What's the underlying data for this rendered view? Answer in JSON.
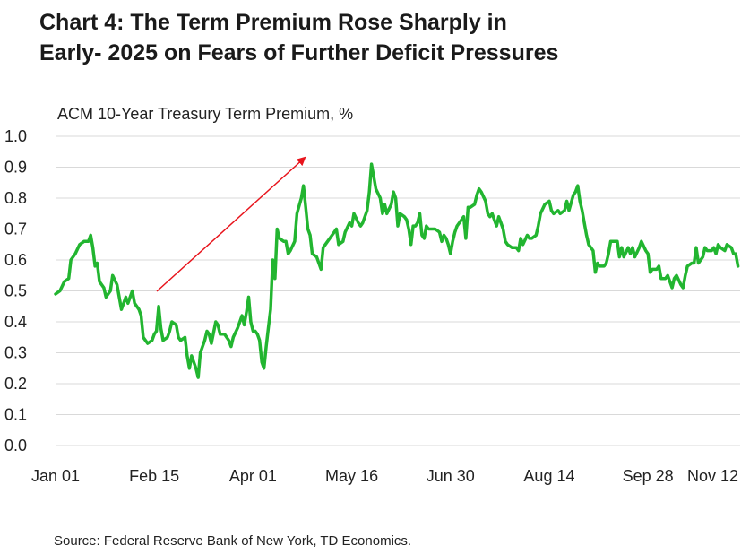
{
  "title": {
    "line1": "Chart 4: The Term Premium Rose Sharply in",
    "line2": "Early- 2025 on Fears of Further Deficit Pressures"
  },
  "source": "Source: Federal Reserve Bank of New York, TD Economics.",
  "colors": {
    "series": "#22b530",
    "arrow": "#e8141c",
    "grid": "#d9d9d9"
  },
  "chart_data": {
    "type": "line",
    "title": "",
    "ylabel": "ACM 10-Year Treasury Term Premium, %",
    "xlabel": "",
    "ylim": [
      0.0,
      1.0
    ],
    "y_ticks": [
      "1.0",
      "0.9",
      "0.8",
      "0.7",
      "0.6",
      "0.5",
      "0.4",
      "0.3",
      "0.2",
      "0.1",
      "0.0"
    ],
    "x_ticks": [
      "Jan 01",
      "Feb 15",
      "Apr 01",
      "May 16",
      "Jun 30",
      "Aug 14",
      "Sep 28",
      "Nov 12"
    ],
    "grid": "horizontal",
    "legend": "none",
    "annotation": "upward arrow from mid-Feb to early May",
    "series": [
      {
        "values": [
          [
            0,
            0.49
          ],
          [
            2,
            0.5
          ],
          [
            4,
            0.53
          ],
          [
            6,
            0.54
          ],
          [
            7,
            0.6
          ],
          [
            9,
            0.62
          ],
          [
            11,
            0.65
          ],
          [
            13,
            0.66
          ],
          [
            15,
            0.66
          ],
          [
            16,
            0.68
          ],
          [
            17,
            0.64
          ],
          [
            18,
            0.58
          ],
          [
            19,
            0.59
          ],
          [
            20,
            0.53
          ],
          [
            22,
            0.51
          ],
          [
            23,
            0.48
          ],
          [
            25,
            0.5
          ],
          [
            26,
            0.55
          ],
          [
            28,
            0.52
          ],
          [
            30,
            0.44
          ],
          [
            32,
            0.48
          ],
          [
            33,
            0.46
          ],
          [
            35,
            0.5
          ],
          [
            36,
            0.46
          ],
          [
            38,
            0.44
          ],
          [
            39,
            0.42
          ],
          [
            40,
            0.35
          ],
          [
            42,
            0.33
          ],
          [
            44,
            0.34
          ],
          [
            45,
            0.36
          ],
          [
            46,
            0.37
          ],
          [
            47,
            0.45
          ],
          [
            48,
            0.38
          ],
          [
            49,
            0.34
          ],
          [
            51,
            0.35
          ],
          [
            52,
            0.37
          ],
          [
            53,
            0.4
          ],
          [
            55,
            0.39
          ],
          [
            56,
            0.35
          ],
          [
            57,
            0.34
          ],
          [
            59,
            0.35
          ],
          [
            60,
            0.29
          ],
          [
            61,
            0.25
          ],
          [
            62,
            0.29
          ],
          [
            64,
            0.25
          ],
          [
            65,
            0.22
          ],
          [
            66,
            0.3
          ],
          [
            68,
            0.34
          ],
          [
            69,
            0.37
          ],
          [
            70,
            0.36
          ],
          [
            71,
            0.33
          ],
          [
            73,
            0.4
          ],
          [
            74,
            0.39
          ],
          [
            75,
            0.36
          ],
          [
            77,
            0.36
          ],
          [
            79,
            0.34
          ],
          [
            80,
            0.32
          ],
          [
            81,
            0.35
          ],
          [
            83,
            0.38
          ],
          [
            85,
            0.42
          ],
          [
            86,
            0.39
          ],
          [
            87,
            0.43
          ],
          [
            88,
            0.48
          ],
          [
            89,
            0.4
          ],
          [
            90,
            0.37
          ],
          [
            91,
            0.37
          ],
          [
            92,
            0.36
          ],
          [
            93,
            0.34
          ],
          [
            94,
            0.27
          ],
          [
            95,
            0.25
          ],
          [
            96,
            0.32
          ],
          [
            97,
            0.38
          ],
          [
            98,
            0.44
          ],
          [
            99,
            0.6
          ],
          [
            100,
            0.54
          ],
          [
            101,
            0.7
          ],
          [
            102,
            0.67
          ],
          [
            104,
            0.66
          ],
          [
            105,
            0.66
          ],
          [
            106,
            0.62
          ],
          [
            107,
            0.63
          ],
          [
            109,
            0.66
          ],
          [
            110,
            0.75
          ],
          [
            112,
            0.8
          ],
          [
            113,
            0.84
          ],
          [
            114,
            0.77
          ],
          [
            115,
            0.7
          ],
          [
            116,
            0.68
          ],
          [
            117,
            0.62
          ],
          [
            119,
            0.61
          ],
          [
            121,
            0.57
          ],
          [
            122,
            0.64
          ],
          [
            124,
            0.66
          ],
          [
            125,
            0.67
          ],
          [
            127,
            0.69
          ],
          [
            128,
            0.7
          ],
          [
            129,
            0.65
          ],
          [
            131,
            0.66
          ],
          [
            132,
            0.69
          ],
          [
            134,
            0.72
          ],
          [
            135,
            0.71
          ],
          [
            136,
            0.75
          ],
          [
            138,
            0.72
          ],
          [
            139,
            0.71
          ],
          [
            140,
            0.72
          ],
          [
            142,
            0.76
          ],
          [
            143,
            0.82
          ],
          [
            144,
            0.91
          ],
          [
            145,
            0.87
          ],
          [
            146,
            0.83
          ],
          [
            148,
            0.8
          ],
          [
            149,
            0.75
          ],
          [
            150,
            0.78
          ],
          [
            151,
            0.75
          ],
          [
            153,
            0.78
          ],
          [
            154,
            0.82
          ],
          [
            155,
            0.8
          ],
          [
            156,
            0.71
          ],
          [
            157,
            0.75
          ],
          [
            159,
            0.74
          ],
          [
            160,
            0.73
          ],
          [
            161,
            0.7
          ],
          [
            162,
            0.65
          ],
          [
            163,
            0.71
          ],
          [
            164,
            0.71
          ],
          [
            165,
            0.72
          ],
          [
            166,
            0.75
          ],
          [
            167,
            0.68
          ],
          [
            168,
            0.67
          ],
          [
            169,
            0.71
          ],
          [
            170,
            0.7
          ],
          [
            171,
            0.7
          ],
          [
            173,
            0.7
          ],
          [
            175,
            0.69
          ],
          [
            176,
            0.66
          ],
          [
            177,
            0.68
          ],
          [
            178,
            0.67
          ],
          [
            179,
            0.65
          ],
          [
            180,
            0.62
          ],
          [
            181,
            0.66
          ],
          [
            182,
            0.69
          ],
          [
            183,
            0.71
          ],
          [
            184,
            0.72
          ],
          [
            185,
            0.73
          ],
          [
            186,
            0.74
          ],
          [
            187,
            0.67
          ],
          [
            188,
            0.77
          ],
          [
            189,
            0.77
          ],
          [
            191,
            0.78
          ],
          [
            192,
            0.81
          ],
          [
            193,
            0.83
          ],
          [
            194,
            0.82
          ],
          [
            196,
            0.79
          ],
          [
            197,
            0.75
          ],
          [
            198,
            0.74
          ],
          [
            199,
            0.75
          ],
          [
            200,
            0.73
          ],
          [
            201,
            0.71
          ],
          [
            202,
            0.74
          ],
          [
            203,
            0.72
          ],
          [
            204,
            0.7
          ],
          [
            205,
            0.66
          ],
          [
            206,
            0.65
          ],
          [
            208,
            0.64
          ],
          [
            210,
            0.64
          ],
          [
            211,
            0.63
          ],
          [
            212,
            0.67
          ],
          [
            213,
            0.65
          ],
          [
            215,
            0.68
          ],
          [
            216,
            0.67
          ],
          [
            217,
            0.67
          ],
          [
            219,
            0.68
          ],
          [
            220,
            0.71
          ],
          [
            221,
            0.75
          ],
          [
            223,
            0.78
          ],
          [
            225,
            0.79
          ],
          [
            226,
            0.76
          ],
          [
            227,
            0.75
          ],
          [
            229,
            0.76
          ],
          [
            230,
            0.75
          ],
          [
            232,
            0.76
          ],
          [
            233,
            0.79
          ],
          [
            234,
            0.76
          ],
          [
            236,
            0.81
          ],
          [
            237,
            0.82
          ],
          [
            238,
            0.84
          ],
          [
            239,
            0.79
          ],
          [
            240,
            0.76
          ],
          [
            241,
            0.72
          ],
          [
            242,
            0.68
          ],
          [
            243,
            0.65
          ],
          [
            245,
            0.63
          ],
          [
            246,
            0.56
          ],
          [
            247,
            0.59
          ],
          [
            248,
            0.58
          ],
          [
            250,
            0.58
          ],
          [
            251,
            0.59
          ],
          [
            252,
            0.62
          ],
          [
            253,
            0.66
          ],
          [
            255,
            0.66
          ],
          [
            256,
            0.66
          ],
          [
            257,
            0.61
          ],
          [
            258,
            0.64
          ],
          [
            259,
            0.61
          ],
          [
            261,
            0.64
          ],
          [
            262,
            0.62
          ],
          [
            263,
            0.64
          ],
          [
            264,
            0.61
          ],
          [
            266,
            0.64
          ],
          [
            267,
            0.66
          ],
          [
            269,
            0.63
          ],
          [
            270,
            0.62
          ],
          [
            271,
            0.56
          ],
          [
            272,
            0.57
          ],
          [
            274,
            0.57
          ],
          [
            275,
            0.58
          ],
          [
            276,
            0.54
          ],
          [
            278,
            0.54
          ],
          [
            279,
            0.55
          ],
          [
            280,
            0.53
          ],
          [
            281,
            0.51
          ],
          [
            282,
            0.54
          ],
          [
            283,
            0.55
          ],
          [
            285,
            0.52
          ],
          [
            286,
            0.51
          ],
          [
            287,
            0.55
          ],
          [
            288,
            0.58
          ],
          [
            290,
            0.59
          ],
          [
            291,
            0.59
          ],
          [
            292,
            0.64
          ],
          [
            293,
            0.59
          ],
          [
            295,
            0.61
          ],
          [
            296,
            0.64
          ],
          [
            297,
            0.63
          ],
          [
            299,
            0.63
          ],
          [
            300,
            0.64
          ],
          [
            301,
            0.62
          ],
          [
            302,
            0.65
          ],
          [
            303,
            0.64
          ],
          [
            305,
            0.63
          ],
          [
            306,
            0.65
          ],
          [
            308,
            0.64
          ],
          [
            309,
            0.62
          ],
          [
            310,
            0.62
          ],
          [
            311,
            0.58
          ]
        ]
      }
    ]
  }
}
